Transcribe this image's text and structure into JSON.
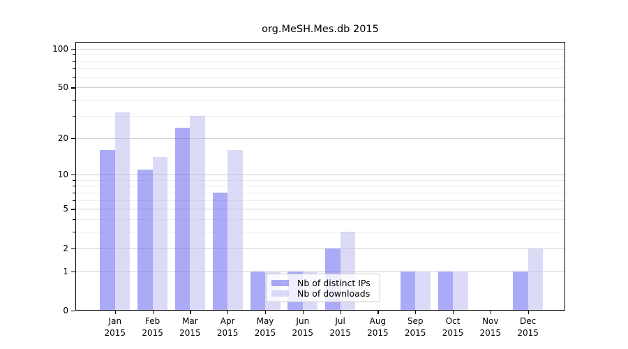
{
  "chart_data": {
    "type": "bar",
    "title": "org.MeSH.Mes.db 2015",
    "categories": [
      "Jan",
      "Feb",
      "Mar",
      "Apr",
      "May",
      "Jun",
      "Jul",
      "Aug",
      "Sep",
      "Oct",
      "Nov",
      "Dec"
    ],
    "year_label": "2015",
    "series": [
      {
        "name": "Nb of distinct IPs",
        "color": "#6464ee",
        "values": [
          16,
          11,
          24,
          7,
          1,
          1,
          2,
          0,
          1,
          1,
          0,
          1
        ]
      },
      {
        "name": "Nb of downloads",
        "color": "#bebef0",
        "values": [
          32,
          14,
          30,
          16,
          1,
          1,
          3,
          0,
          1,
          1,
          0,
          2
        ]
      }
    ],
    "y_axis": {
      "scale": "log1p",
      "ticks": [
        100,
        50,
        20,
        10,
        5,
        2,
        1,
        0
      ],
      "minor_gridlines": [
        3,
        4,
        6,
        7,
        8,
        9,
        30,
        40,
        60,
        70,
        80,
        90
      ],
      "ylim": [
        0,
        113
      ]
    },
    "grid": true,
    "legend": {
      "position": "inside-bottom-center"
    }
  },
  "colors": {
    "bar_ips_on_white": "#aaaaf6",
    "bar_downloads_on_white": "#dbdbf7",
    "grid_major": "#cfcfcf",
    "grid_minor": "#ececec",
    "axis": "#000000",
    "legend_border": "#c9c9c9",
    "background": "#ffffff"
  }
}
